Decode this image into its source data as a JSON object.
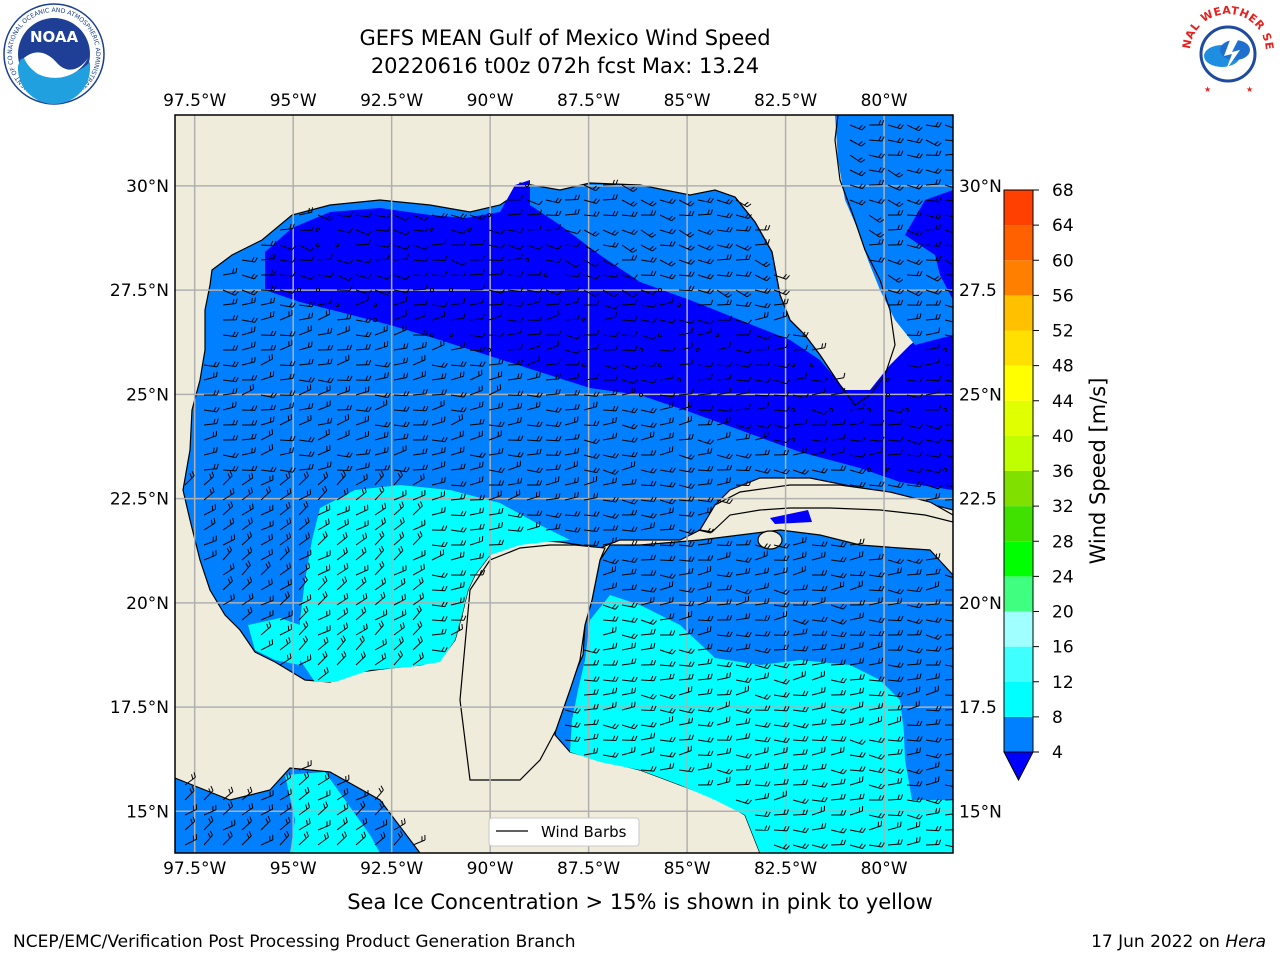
{
  "header": {
    "title_line1": "GEFS MEAN Gulf of Mexico Wind Speed",
    "title_line2": "20220616 t00z 072h fcst   Max: 13.24"
  },
  "logos": {
    "noaa": {
      "icon": "noaa-logo",
      "text": "NOAA",
      "ring_text": "NATIONAL OCEANIC AND ATMOSPHERIC ADMINISTRATION · U.S. DEPARTMENT OF COMMERCE"
    },
    "nws": {
      "icon": "nws-logo",
      "ring_text": "NATIONAL WEATHER SERVICE"
    }
  },
  "map": {
    "lon_range": [
      -98.0,
      -78.25
    ],
    "lat_range": [
      14.0,
      31.7
    ],
    "lon_ticks": [
      "97.5°W",
      "95°W",
      "92.5°W",
      "90°W",
      "87.5°W",
      "85°W",
      "82.5°W",
      "80°W"
    ],
    "lon_tick_values": [
      -97.5,
      -95,
      -92.5,
      -90,
      -87.5,
      -85,
      -82.5,
      -80
    ],
    "lat_ticks_left": [
      "30°N",
      "27.5°N",
      "25°N",
      "22.5°N",
      "20°N",
      "17.5°N",
      "15°N"
    ],
    "lat_ticks_right": [
      "30°N",
      "27.5",
      "25°N",
      "22.5",
      "20°N",
      "17.5",
      "15°N"
    ],
    "lat_tick_values": [
      30,
      27.5,
      25,
      22.5,
      20,
      17.5,
      15
    ],
    "gridlines": true,
    "legend_label": "Wind Barbs",
    "legend_placement": "bottom-center",
    "colors": {
      "land": "#efecdc",
      "band_4_8": "#0080ff",
      "band_below_4": "#0000ff",
      "band_8_12": "#00ffff",
      "band_12_16": "#40ffff"
    }
  },
  "colorbar": {
    "label": "Wind Speed [m/s]",
    "tick_labels": [
      "4",
      "8",
      "12",
      "16",
      "20",
      "24",
      "28",
      "32",
      "36",
      "40",
      "44",
      "48",
      "52",
      "56",
      "60",
      "64",
      "68"
    ],
    "colors": [
      "#0080ff",
      "#00ffff",
      "#40ffff",
      "#a0ffff",
      "#40ff80",
      "#00ff00",
      "#40e000",
      "#80e000",
      "#c0ff00",
      "#e0ff00",
      "#ffff00",
      "#ffe000",
      "#ffc000",
      "#ff8000",
      "#ff6000",
      "#ff4000",
      "#ff0000"
    ],
    "under_color": "#0000ff"
  },
  "subtitle": "Sea Ice Concentration > 15% is shown in pink to yellow",
  "footer": {
    "left": "NCEP/EMC/Verification Post Processing Product Generation Branch",
    "right_prefix": "17 Jun 2022 on ",
    "right_host": "Hera"
  }
}
